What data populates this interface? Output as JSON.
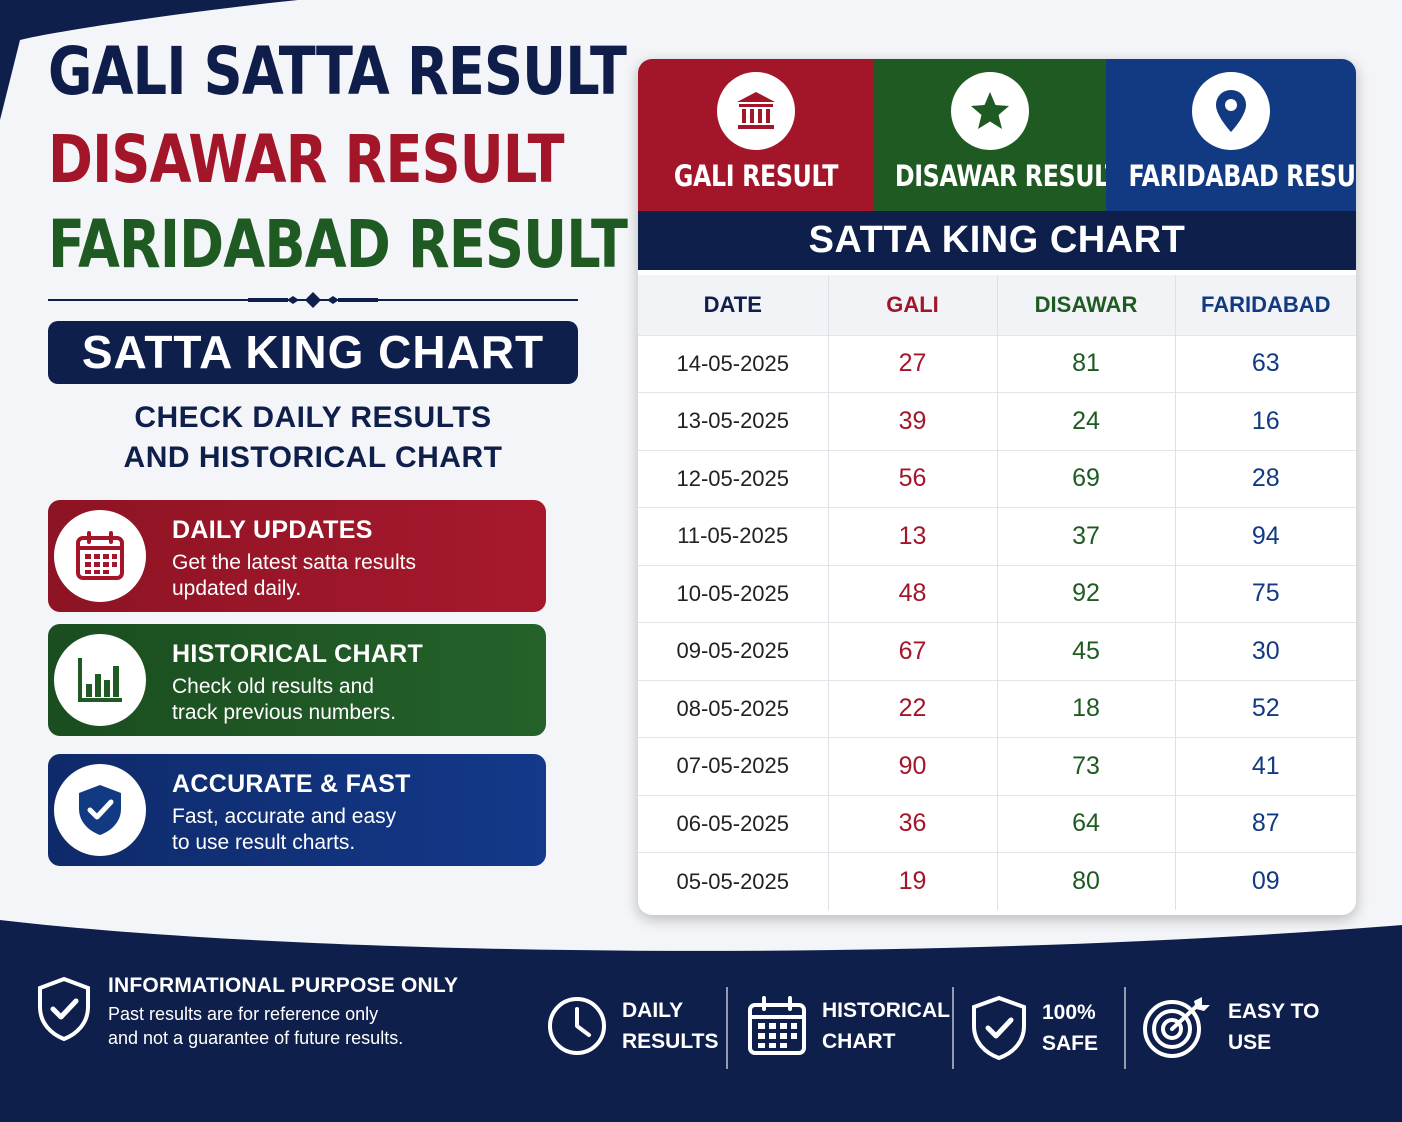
{
  "titles": {
    "line1": "GALI SATTA RESULT",
    "line2": "DISAWAR RESULT",
    "line3": "FARIDABAD RESULT"
  },
  "badge": "SATTA KING CHART",
  "subtitle": {
    "line1": "CHECK DAILY RESULTS",
    "line2": "AND HISTORICAL CHART"
  },
  "features": [
    {
      "title": "DAILY UPDATES",
      "desc_line1": "Get the latest satta results",
      "desc_line2": "updated daily.",
      "icon": "calendar-icon",
      "color": "#a3162a"
    },
    {
      "title": "HISTORICAL CHART",
      "desc_line1": "Check old results and",
      "desc_line2": "track previous numbers.",
      "icon": "bar-chart-icon",
      "color": "#1e5a22"
    },
    {
      "title": "ACCURATE & FAST",
      "desc_line1": "Fast, accurate and easy",
      "desc_line2": "to use result charts.",
      "icon": "shield-check-icon",
      "color": "#123a82"
    }
  ],
  "card": {
    "tabs": [
      {
        "label": "GALI RESULT",
        "icon": "bank-icon",
        "color": "#a3162a"
      },
      {
        "label": "DISAWAR RESULT",
        "icon": "star-icon",
        "color": "#1e5a22"
      },
      {
        "label": "FARIDABAD RESULT",
        "icon": "location-pin-icon",
        "color": "#123a82"
      }
    ],
    "chart_title": "SATTA KING CHART",
    "columns": [
      "DATE",
      "GALI",
      "DISAWAR",
      "FARIDABAD"
    ],
    "rows": [
      [
        "14-05-2025",
        "27",
        "81",
        "63"
      ],
      [
        "13-05-2025",
        "39",
        "24",
        "16"
      ],
      [
        "12-05-2025",
        "56",
        "69",
        "28"
      ],
      [
        "11-05-2025",
        "13",
        "37",
        "94"
      ],
      [
        "10-05-2025",
        "48",
        "92",
        "75"
      ],
      [
        "09-05-2025",
        "67",
        "45",
        "30"
      ],
      [
        "08-05-2025",
        "22",
        "18",
        "52"
      ],
      [
        "07-05-2025",
        "90",
        "73",
        "41"
      ],
      [
        "06-05-2025",
        "36",
        "64",
        "87"
      ],
      [
        "05-05-2025",
        "19",
        "80",
        "09"
      ]
    ]
  },
  "footer": {
    "info_title": "INFORMATIONAL PURPOSE ONLY",
    "info_desc_line1": "Past results are for reference only",
    "info_desc_line2": "and not a guarantee of future results.",
    "badges": [
      {
        "line1": "DAILY",
        "line2": "RESULTS",
        "icon": "clock-icon"
      },
      {
        "line1": "HISTORICAL",
        "line2": "CHART",
        "icon": "calendar-icon"
      },
      {
        "line1": "100%",
        "line2": "SAFE",
        "icon": "shield-check-icon"
      },
      {
        "line1": "EASY TO",
        "line2": "USE",
        "icon": "target-icon"
      }
    ]
  },
  "colors": {
    "navy": "#0f1f4c",
    "red": "#a3162a",
    "green": "#1e5a22",
    "blue": "#123a82"
  }
}
